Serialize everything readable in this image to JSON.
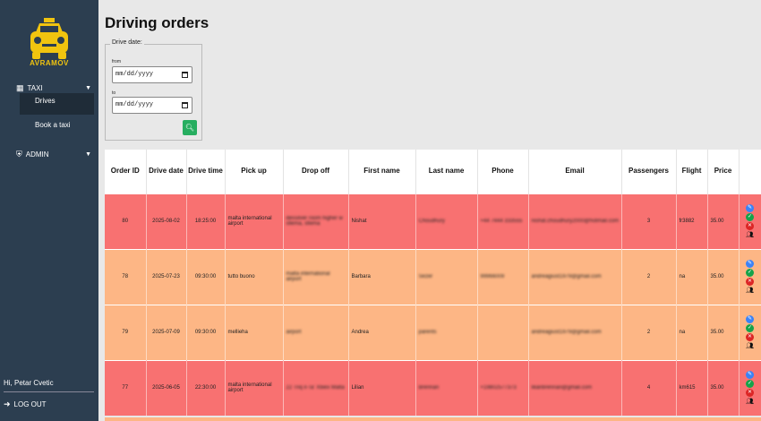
{
  "sidebar": {
    "brand": "AVRAMOV",
    "menu": [
      {
        "label": "TAXI",
        "icon": "grid-icon"
      },
      {
        "label": "ADMIN",
        "icon": "user-shield-icon"
      }
    ],
    "submenu": [
      {
        "label": "Drives"
      },
      {
        "label": "Book a taxi"
      }
    ],
    "greeting": "Hi, Petar Cvetic",
    "logout": "LOG OUT"
  },
  "page": {
    "title": "Driving orders"
  },
  "filter": {
    "legend": "Drive date:",
    "from_label": "from",
    "to_label": "to",
    "from_value": "mm/dd/yyyy",
    "to_value": "mm/dd/yyyy",
    "search_icon": "search-icon"
  },
  "table": {
    "headers": [
      "Order ID",
      "Drive date",
      "Drive time",
      "Pick up",
      "Drop off",
      "First name",
      "Last name",
      "Phone",
      "Email",
      "Passengers",
      "Flight",
      "Price",
      ""
    ],
    "rows": [
      {
        "status": "red",
        "order_id": "80",
        "date": "2025-08-02",
        "time": "18:25:00",
        "pickup": "malta international airport",
        "dropoff": "dessilver room higher w sliema, sliema",
        "first": "Nishat",
        "last": "Choudhury",
        "phone": "+44 7444 333555",
        "email": "nishat.choudhury2000@hotmail.com",
        "passengers": "3",
        "flight": "fr3882",
        "price": "35.00"
      },
      {
        "status": "orange",
        "order_id": "78",
        "date": "2025-07-23",
        "time": "09:30:00",
        "pickup": "tutto buono",
        "dropoff": "malta international airport",
        "first": "Barbara",
        "last": "Sezer",
        "phone": "99966009",
        "email": "andreagiust1979@gmail.com",
        "passengers": "2",
        "flight": "na",
        "price": "35.00"
      },
      {
        "status": "orange",
        "order_id": "79",
        "date": "2025-07-09",
        "time": "09:30:00",
        "pickup": "mellieha",
        "dropoff": "airport",
        "first": "Andrea",
        "last": "parents",
        "phone": "",
        "email": "andreagiust1979@gmail.com",
        "passengers": "2",
        "flight": "na",
        "price": "35.00"
      },
      {
        "status": "red",
        "order_id": "77",
        "date": "2025-06-05",
        "time": "22:30:00",
        "pickup": "malta international airport",
        "dropoff": "22 Triq il-Ta' Xbiex Malta",
        "first": "Lilian",
        "last": "Brennan",
        "phone": "+19802577373",
        "email": "lilianbrennan@gmail.com",
        "passengers": "4",
        "flight": "km615",
        "price": "35.00"
      }
    ]
  },
  "colors": {
    "sidebar": "#2c3e50",
    "red_row": "#f87171",
    "orange_row": "#fdb685",
    "accent": "#f1c40f",
    "search": "#27ae60"
  }
}
